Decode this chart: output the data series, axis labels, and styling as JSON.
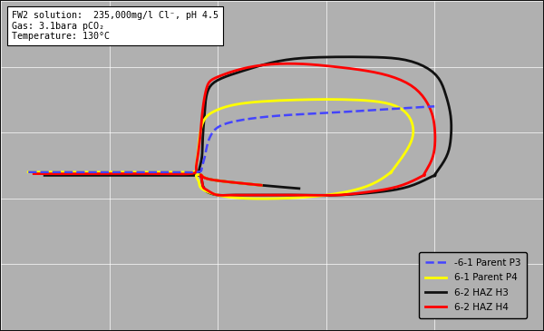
{
  "annotation": "FW2 solution:  235,000mg/l Cl⁻, pH 4.5\nGas: 3.1bara pCO₂\nTemperature: 130°C",
  "background_color": "#b0b0b0",
  "legend_labels": [
    "-6-1 Parent P3",
    "6-1 Parent P4",
    "6-2 HAZ H3",
    "6-2 HAZ H4"
  ],
  "legend_colors": [
    "#4444ff",
    "#ffff00",
    "#111111",
    "#ff0000"
  ],
  "legend_styles": [
    "--",
    "-",
    "-",
    "-"
  ],
  "xlim": [
    0,
    100
  ],
  "ylim": [
    0,
    100
  ],
  "grid_color": "#c8c8c8"
}
